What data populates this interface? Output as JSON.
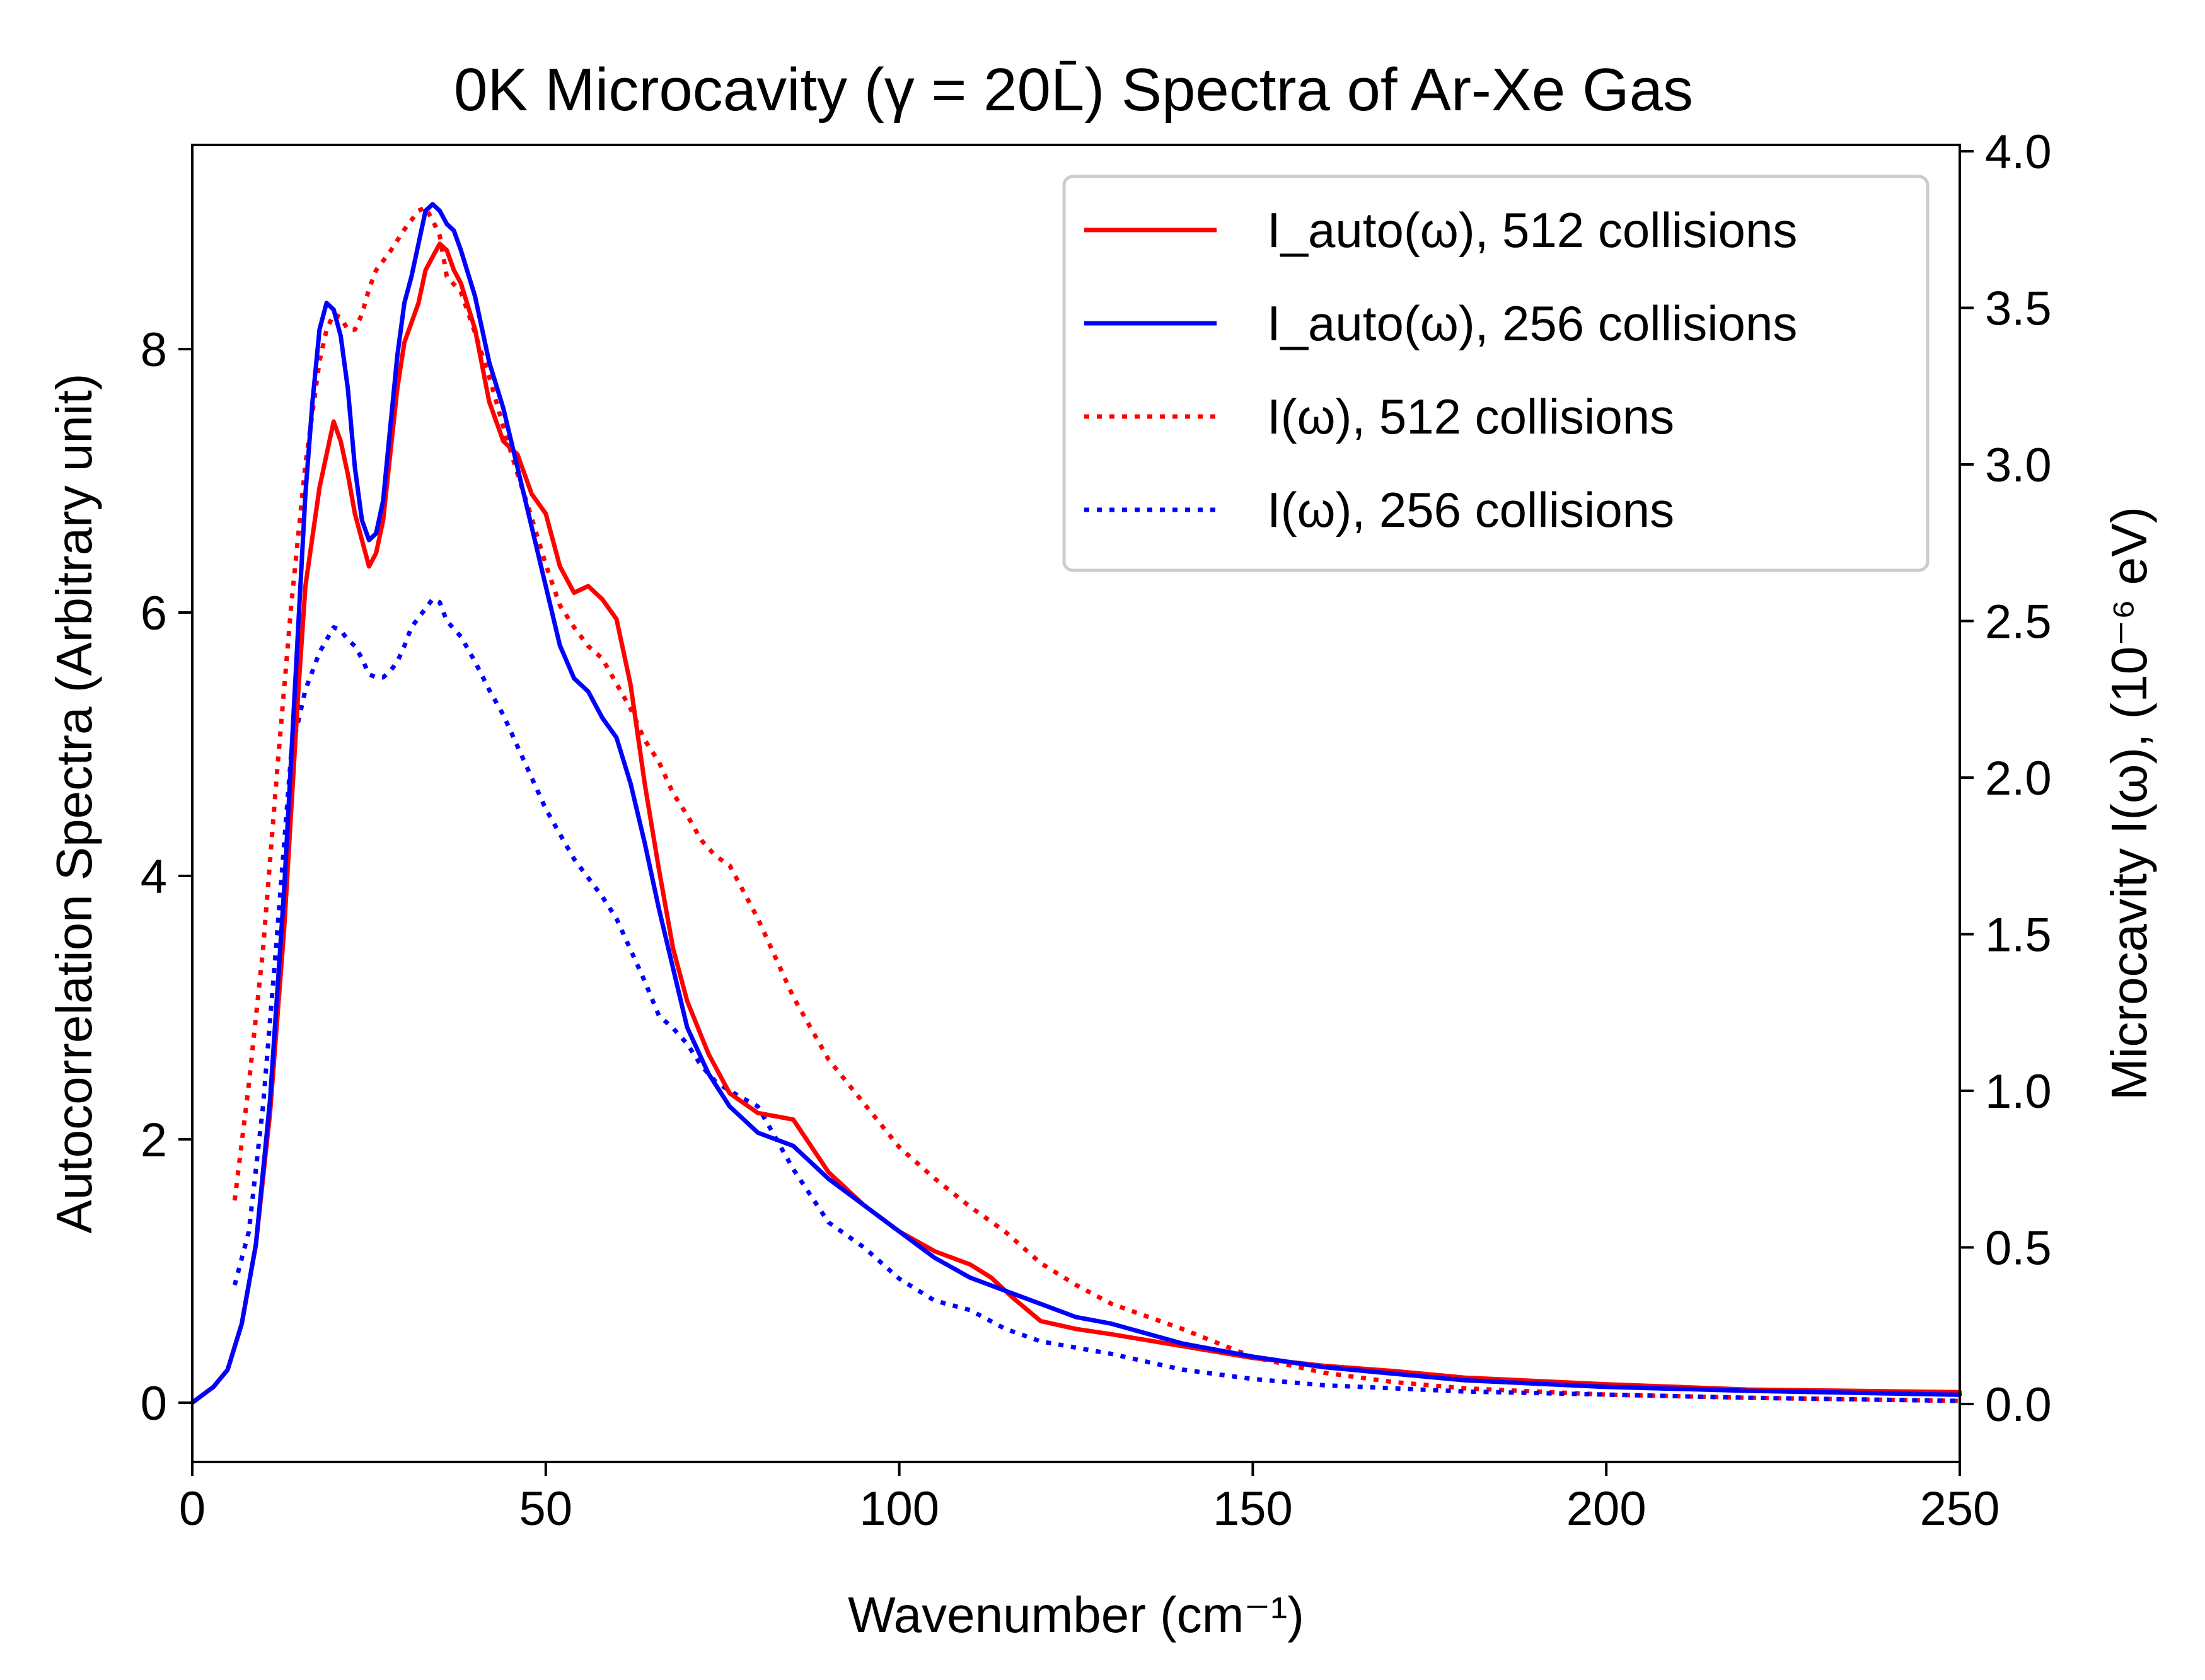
{
  "chart_data": {
    "type": "line",
    "title": "0K Microcavity (γ = 20L̄) Spectra of Ar-Xe Gas",
    "xlabel": "Wavenumber (cm⁻¹)",
    "ylabel_left": "Autocorrelation Spectra (Arbitrary unit)",
    "ylabel_right": "Microcavity I(ω), (10⁻⁶ eV)",
    "xlim": [
      0,
      250
    ],
    "ylim_left": [
      -0.45,
      9.55
    ],
    "ylim_right": [
      -0.185,
      4.02
    ],
    "xticks": [
      "0",
      "50",
      "100",
      "150",
      "200",
      "250"
    ],
    "yticks_left": [
      "0",
      "2",
      "4",
      "6",
      "8"
    ],
    "yticks_right": [
      "0.0",
      "0.5",
      "1.0",
      "1.5",
      "2.0",
      "2.5",
      "3.0",
      "3.5",
      "4.0"
    ],
    "grid": false,
    "legend_position": "upper right",
    "series": [
      {
        "name": "I_auto(ω), 512 collisions",
        "axis": "left",
        "color": "#ff0000",
        "style": "solid",
        "x": [
          0,
          2,
          3,
          5,
          7,
          9,
          11,
          13,
          15,
          16,
          18,
          19,
          20,
          21,
          22,
          23,
          24,
          25,
          26,
          27,
          28,
          29,
          30,
          31,
          32,
          33,
          34,
          35,
          36,
          37,
          38,
          40,
          42,
          44,
          46,
          48,
          50,
          52,
          54,
          56,
          58,
          60,
          62,
          64,
          66,
          68,
          70,
          73,
          76,
          80,
          85,
          90,
          95,
          100,
          105,
          110,
          113,
          116,
          120,
          125,
          130,
          140,
          150,
          160,
          170,
          180,
          200,
          220,
          250
        ],
        "y": [
          0,
          0.08,
          0.12,
          0.25,
          0.6,
          1.2,
          2.2,
          3.6,
          5.4,
          6.2,
          6.95,
          7.2,
          7.45,
          7.3,
          7.05,
          6.75,
          6.55,
          6.35,
          6.45,
          6.7,
          7.2,
          7.7,
          8.05,
          8.2,
          8.35,
          8.6,
          8.7,
          8.8,
          8.75,
          8.6,
          8.5,
          8.15,
          7.6,
          7.3,
          7.2,
          6.9,
          6.75,
          6.35,
          6.15,
          6.2,
          6.1,
          5.95,
          5.45,
          4.7,
          4.05,
          3.45,
          3.05,
          2.65,
          2.35,
          2.2,
          2.15,
          1.75,
          1.5,
          1.3,
          1.15,
          1.05,
          0.95,
          0.8,
          0.62,
          0.56,
          0.52,
          0.43,
          0.34,
          0.28,
          0.24,
          0.19,
          0.14,
          0.1,
          0.08
        ]
      },
      {
        "name": "I_auto(ω), 256 collisions",
        "axis": "left",
        "color": "#0000ff",
        "style": "solid",
        "x": [
          0,
          2,
          3,
          5,
          7,
          9,
          11,
          13,
          15,
          16,
          17,
          18,
          19,
          20,
          21,
          22,
          23,
          24,
          25,
          26,
          27,
          28,
          29,
          30,
          31,
          32,
          33,
          34,
          35,
          36,
          37,
          38,
          40,
          42,
          44,
          46,
          48,
          50,
          52,
          54,
          56,
          58,
          60,
          62,
          64,
          66,
          68,
          70,
          73,
          76,
          80,
          85,
          90,
          95,
          100,
          105,
          110,
          115,
          120,
          125,
          130,
          140,
          150,
          160,
          170,
          180,
          200,
          220,
          250
        ],
        "y": [
          0,
          0.08,
          0.12,
          0.25,
          0.6,
          1.2,
          2.3,
          3.9,
          5.9,
          6.9,
          7.6,
          8.15,
          8.35,
          8.3,
          8.1,
          7.7,
          7.1,
          6.7,
          6.55,
          6.6,
          6.85,
          7.4,
          7.95,
          8.35,
          8.55,
          8.8,
          9.05,
          9.1,
          9.05,
          8.95,
          8.9,
          8.75,
          8.4,
          7.9,
          7.55,
          7.1,
          6.65,
          6.2,
          5.75,
          5.5,
          5.4,
          5.2,
          5.05,
          4.7,
          4.25,
          3.75,
          3.3,
          2.85,
          2.5,
          2.25,
          2.05,
          1.95,
          1.7,
          1.5,
          1.3,
          1.1,
          0.95,
          0.85,
          0.75,
          0.65,
          0.6,
          0.45,
          0.35,
          0.27,
          0.22,
          0.17,
          0.12,
          0.09,
          0.06
        ]
      },
      {
        "name": "I(ω), 512 collisions",
        "axis": "right",
        "color": "#ff0000",
        "style": "dotted",
        "x": [
          6,
          8,
          10,
          12,
          14,
          16,
          18,
          19,
          20,
          21,
          22,
          23,
          24,
          25,
          26,
          28,
          30,
          32,
          33,
          34,
          35,
          36,
          38,
          40,
          42,
          44,
          46,
          48,
          50,
          52,
          54,
          56,
          58,
          60,
          62,
          64,
          66,
          68,
          70,
          72,
          74,
          76,
          80,
          85,
          90,
          95,
          100,
          105,
          110,
          115,
          120,
          125,
          130,
          140,
          150,
          160,
          170,
          180,
          200,
          220,
          250
        ],
        "y": [
          0.65,
          1.02,
          1.45,
          2.02,
          2.55,
          3.0,
          3.33,
          3.43,
          3.48,
          3.47,
          3.43,
          3.43,
          3.48,
          3.56,
          3.62,
          3.68,
          3.75,
          3.81,
          3.82,
          3.78,
          3.73,
          3.6,
          3.55,
          3.42,
          3.28,
          3.12,
          2.97,
          2.83,
          2.68,
          2.55,
          2.48,
          2.42,
          2.38,
          2.3,
          2.22,
          2.12,
          2.05,
          1.95,
          1.88,
          1.8,
          1.75,
          1.72,
          1.55,
          1.3,
          1.1,
          0.96,
          0.82,
          0.72,
          0.63,
          0.55,
          0.45,
          0.38,
          0.32,
          0.24,
          0.15,
          0.1,
          0.07,
          0.05,
          0.03,
          0.02,
          0.01
        ]
      },
      {
        "name": "I(ω), 256 collisions",
        "axis": "right",
        "color": "#0000ff",
        "style": "dotted",
        "x": [
          6,
          8,
          10,
          12,
          14,
          16,
          18,
          19,
          20,
          21,
          22,
          23,
          24,
          25,
          26,
          27,
          28,
          29,
          30,
          31,
          32,
          33,
          34,
          35,
          36,
          38,
          40,
          42,
          44,
          46,
          48,
          50,
          52,
          54,
          56,
          58,
          60,
          62,
          64,
          66,
          68,
          70,
          72,
          74,
          76,
          80,
          85,
          90,
          95,
          100,
          105,
          110,
          115,
          120,
          125,
          130,
          140,
          150,
          160,
          170,
          180,
          200,
          220,
          250
        ],
        "y": [
          0.38,
          0.55,
          0.95,
          1.5,
          2.08,
          2.28,
          2.4,
          2.44,
          2.48,
          2.47,
          2.44,
          2.42,
          2.38,
          2.33,
          2.32,
          2.32,
          2.34,
          2.37,
          2.42,
          2.48,
          2.51,
          2.54,
          2.57,
          2.56,
          2.5,
          2.45,
          2.37,
          2.28,
          2.2,
          2.1,
          2.0,
          1.9,
          1.82,
          1.74,
          1.68,
          1.62,
          1.55,
          1.45,
          1.35,
          1.24,
          1.2,
          1.15,
          1.08,
          1.03,
          1.0,
          0.95,
          0.75,
          0.58,
          0.5,
          0.4,
          0.33,
          0.3,
          0.24,
          0.2,
          0.18,
          0.16,
          0.11,
          0.08,
          0.06,
          0.05,
          0.04,
          0.03,
          0.02,
          0.01
        ]
      }
    ]
  }
}
